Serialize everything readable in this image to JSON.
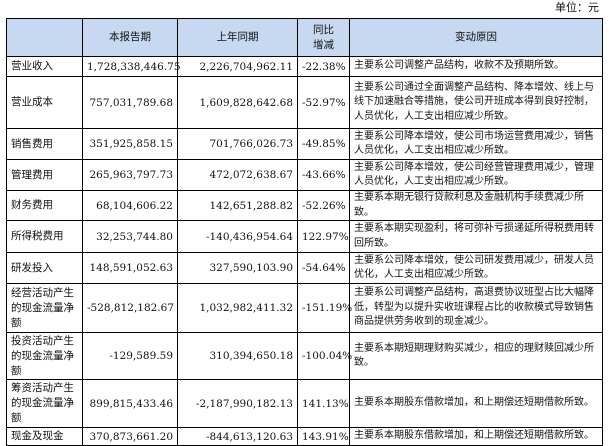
{
  "unit": "单位：元",
  "headers": [
    "",
    "本报告期",
    "上年同期",
    "同比增减",
    "变动原因"
  ],
  "rows": [
    {
      "item": "营业收入",
      "current": "1,728,338,446.75",
      "prior": "2,226,704,962.11",
      "change": "-22.38%",
      "reason": "主要系公司调整产品结构，收款不及预期所致。"
    },
    {
      "item": "营业成本",
      "current": "757,031,789.68",
      "prior": "1,609,828,642.68",
      "change": "-52.97%",
      "reason": "主要系公司通过全面调整产品结构、降本增效、线上与线下加速融合等措施，使公司开班成本得到良好控制，人员优化，人工支出相应减少所致。"
    },
    {
      "item": "销售费用",
      "current": "351,925,858.15",
      "prior": "701,766,026.73",
      "change": "-49.85%",
      "reason": "主要系公司降本增效，使公司市场运营费用减少，销售人员优化，人工支出相应减少所致。"
    },
    {
      "item": "管理费用",
      "current": "265,963,797.73",
      "prior": "472,072,638.67",
      "change": "-43.66%",
      "reason": "主要系公司降本增效，使公司经营管理费用减少，管理人员优化，人工支出相应减少所致。"
    },
    {
      "item": "财务费用",
      "current": "68,104,606.22",
      "prior": "142,651,288.82",
      "change": "-52.26%",
      "reason": "主要系本期无银行贷款利息及金融机构手续费减少所致。"
    },
    {
      "item": "所得税费用",
      "current": "32,253,744.80",
      "prior": "-140,436,954.64",
      "change": "122.97%",
      "reason": "主要系本期实现盈利，将可弥补亏损递延所得税费用转回所致。"
    },
    {
      "item": "研发投入",
      "current": "148,591,052.63",
      "prior": "327,590,103.90",
      "change": "-54.64%",
      "reason": "主要系公司降本增效，使公司研发费用减少，研发人员优化，人工支出相应减少所致。"
    },
    {
      "item": "经营活动产生的现金流量净额",
      "current": "-528,812,182.67",
      "prior": "1,032,982,411.32",
      "change": "-151.19%",
      "reason": "主要系公司调整产品结构，高退费协议班型占比大幅降低，转型为以提升实收班课程占比的收款模式导致销售商品提供劳务收到的现金减少。"
    },
    {
      "item": "投资活动产生的现金流量净额",
      "current": "-129,589.59",
      "prior": "310,394,650.18",
      "change": "-100.04%",
      "reason": "主要系本期短期理财购买减少，相应的理财赎回减少所致。"
    },
    {
      "item": "筹资活动产生的现金流量净额",
      "current": "899,815,433.46",
      "prior": "-2,187,990,182.13",
      "change": "141.13%",
      "reason": "主要系本期股东借款增加，和上期偿还短期借款所致。"
    },
    {
      "item": "现金及现金",
      "current": "370,873,661.20",
      "prior": "-844,613,120.63",
      "change": "143.91%",
      "reason": "主要系本期股东借款增加，和上期偿还短期借款所致。"
    }
  ]
}
